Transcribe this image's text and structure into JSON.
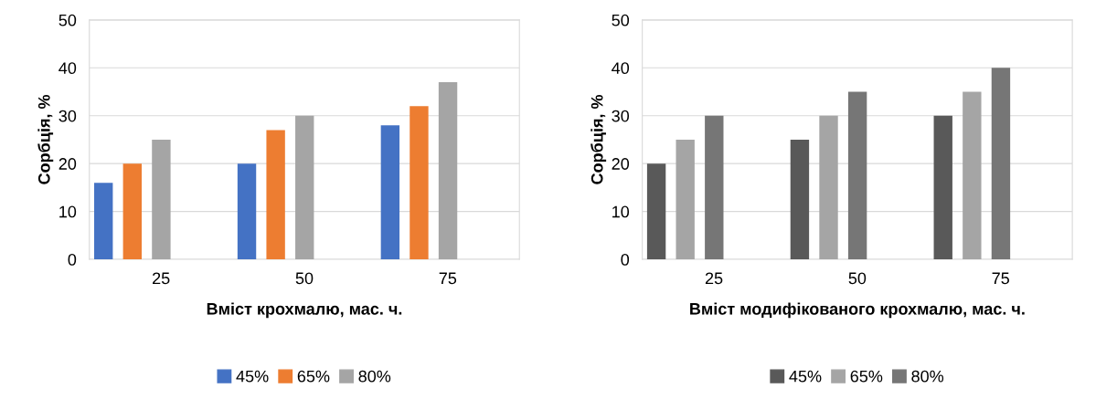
{
  "chart_data": [
    {
      "type": "bar",
      "categories": [
        "25",
        "50",
        "75"
      ],
      "xlabel": "Вміст крохмалю, мас. ч.",
      "ylabel": "Сорбція, %",
      "ylim": [
        0,
        50
      ],
      "yticks": [
        0,
        10,
        20,
        30,
        40,
        50
      ],
      "grid": "y",
      "legend": "bottom",
      "series": [
        {
          "name": "45%",
          "color": "#4472c4",
          "values": [
            16,
            20,
            28
          ]
        },
        {
          "name": "65%",
          "color": "#ed7d31",
          "values": [
            20,
            27,
            32
          ]
        },
        {
          "name": "80%",
          "color": "#a5a5a5",
          "values": [
            25,
            30,
            37
          ]
        }
      ]
    },
    {
      "type": "bar",
      "categories": [
        "25",
        "50",
        "75"
      ],
      "xlabel": "Вміст модифікованого крохмалю, мас. ч.",
      "ylabel": "Сорбція, %",
      "ylim": [
        0,
        50
      ],
      "yticks": [
        0,
        10,
        20,
        30,
        40,
        50
      ],
      "grid": "y",
      "legend": "bottom",
      "series": [
        {
          "name": "45%",
          "color": "#595959",
          "values": [
            20,
            25,
            30
          ]
        },
        {
          "name": "65%",
          "color": "#a5a5a5",
          "values": [
            25,
            30,
            35
          ]
        },
        {
          "name": "80%",
          "color": "#767676",
          "values": [
            30,
            35,
            40
          ]
        }
      ]
    }
  ]
}
